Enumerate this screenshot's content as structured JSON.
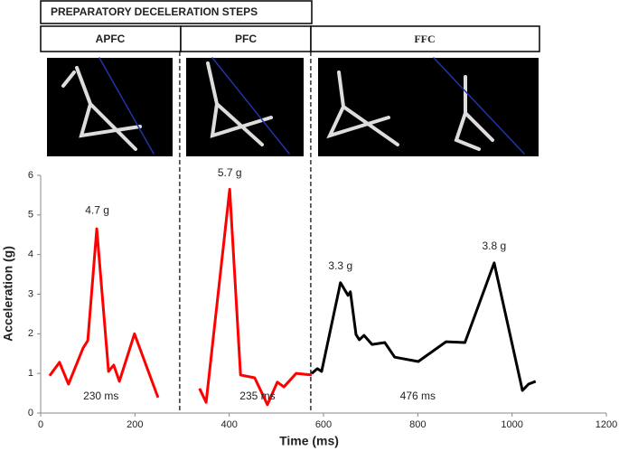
{
  "chart_data": {
    "type": "line",
    "header": "PREPARATORY DECELERATION STEPS",
    "phases": [
      "APFC",
      "PFC",
      "FFC"
    ],
    "dividers": [
      295,
      573
    ],
    "xlabel": "Time (ms)",
    "ylabel": "Acceleration (g)",
    "xlim": [
      0,
      1200
    ],
    "xticks": [
      0,
      200,
      400,
      600,
      800,
      1000,
      1200
    ],
    "ylim": [
      0,
      6
    ],
    "yticks": [
      0,
      1,
      2,
      3,
      4,
      5,
      6
    ],
    "series": [
      {
        "color": "#ff0000",
        "x": [
          19,
          40,
          59,
          90,
          100,
          119,
          144,
          155,
          167,
          199,
          249
        ],
        "values": [
          0.94,
          1.28,
          0.73,
          1.64,
          1.83,
          4.65,
          1.05,
          1.21,
          0.8,
          2.0,
          0.39
        ]
      },
      {
        "color": "#ff0000",
        "x": [
          337,
          351,
          401,
          424,
          454,
          481,
          502,
          516,
          542,
          575
        ],
        "values": [
          0.62,
          0.27,
          5.65,
          0.96,
          0.89,
          0.21,
          0.78,
          0.66,
          1.0,
          0.96
        ]
      },
      {
        "color": "#000000",
        "x": [
          575,
          587,
          596,
          636,
          652,
          657,
          669,
          676,
          686,
          703,
          730,
          751,
          801,
          860,
          900,
          962,
          1022,
          1035,
          1050
        ],
        "values": [
          1.0,
          1.12,
          1.05,
          3.29,
          2.97,
          3.06,
          1.98,
          1.85,
          1.96,
          1.73,
          1.78,
          1.41,
          1.3,
          1.8,
          1.78,
          3.79,
          0.57,
          0.73,
          0.8
        ]
      }
    ],
    "annotations": [
      {
        "text": "4.7 g",
        "x": 120,
        "y": 5.1
      },
      {
        "text": "5.7 g",
        "x": 401,
        "y": 6.05
      },
      {
        "text": "3.3 g",
        "x": 636,
        "y": 3.7
      },
      {
        "text": "3.8 g",
        "x": 962,
        "y": 4.2
      },
      {
        "text": "230 ms",
        "x": 128,
        "y": 0.42
      },
      {
        "text": "235 ms",
        "x": 460,
        "y": 0.42
      },
      {
        "text": "476 ms",
        "x": 800,
        "y": 0.42
      }
    ]
  }
}
